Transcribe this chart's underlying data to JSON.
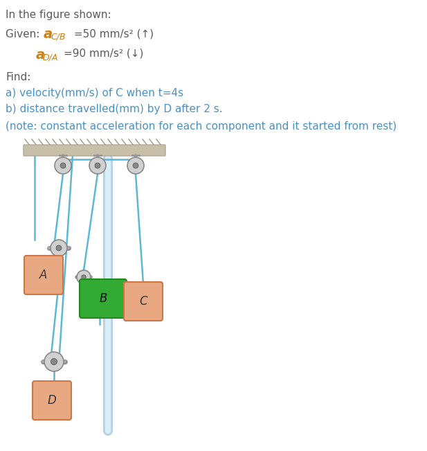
{
  "title_line": "In the figure shown:",
  "given_label": "Given: ",
  "given_acb_letter": "a",
  "given_acb_sub": "C/B",
  "given_acb_val": " =50 mm/s² (↑)",
  "given_ada_letter": "a",
  "given_ada_sub": "D/A",
  "given_ada_val": "=90 mm/s² (↓)",
  "find_label": "Find:",
  "find_a": "a) velocity(mm/s) of C when t=4s",
  "find_b": "b) distance travelled(mm) by D after 2 s.",
  "note": "(note: constant acceleration for each component and it started from rest)",
  "text_color": "#5a5a5a",
  "blue_color": "#4a90c4",
  "orange_bold_color": "#c8821a",
  "ceiling_color": "#c8bfa8",
  "ceiling_edge_color": "#b0a898",
  "hatch_color": "#999988",
  "rope_color": "#5bb8d4",
  "pulley_face": "#d0d0d0",
  "pulley_edge": "#888888",
  "pulley_inner": "#888888",
  "bracket_color": "#999999",
  "rod_outer": "#b8d0e0",
  "rod_inner": "#d8eef8",
  "block_color": "#e8a882",
  "block_edge": "#cc7744",
  "block_B_color": "#33aa33",
  "block_B_edge": "#228822",
  "block_B_highlight": "#55cc55",
  "label_color": "#333333",
  "label_A": "A",
  "label_B": "B",
  "label_C": "C",
  "label_D": "D",
  "fig_w": 6.17,
  "fig_h": 6.51,
  "dpi": 100
}
